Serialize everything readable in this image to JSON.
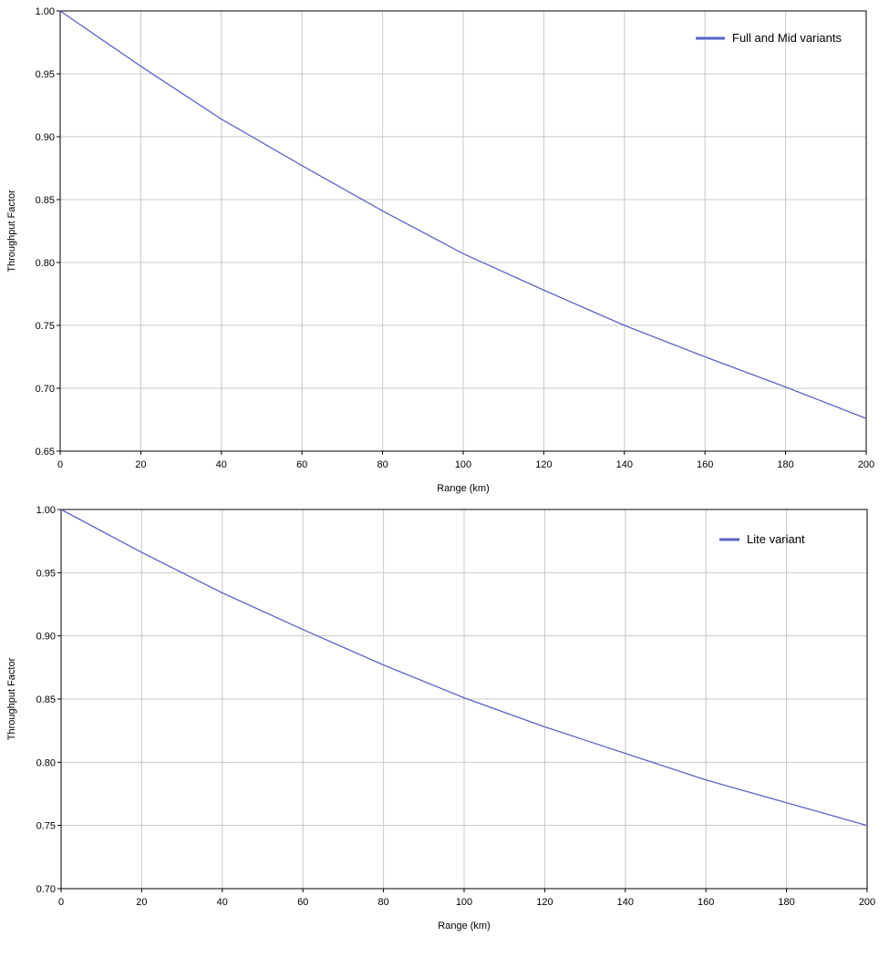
{
  "chart_data": [
    {
      "type": "line",
      "xlabel": "Range (km)",
      "ylabel": "Throughput Factor",
      "xlim": [
        0,
        200
      ],
      "ylim": [
        0.65,
        1.0
      ],
      "x_ticks": [
        0,
        20,
        40,
        60,
        80,
        100,
        120,
        140,
        160,
        180,
        200
      ],
      "y_ticks": [
        0.65,
        0.7,
        0.75,
        0.8,
        0.85,
        0.9,
        0.95,
        1.0
      ],
      "x_tick_labels": [
        "0",
        "20",
        "40",
        "60",
        "80",
        "100",
        "120",
        "140",
        "160",
        "180",
        "200"
      ],
      "y_tick_labels": [
        "0.65",
        "0.70",
        "0.75",
        "0.80",
        "0.85",
        "0.90",
        "0.95",
        "1.00"
      ],
      "grid": true,
      "legend_position": "top-right",
      "series": [
        {
          "name": "Full and Mid variants",
          "color": "#5b63c9",
          "x": [
            0,
            20,
            40,
            60,
            80,
            100,
            120,
            140,
            160,
            180,
            200
          ],
          "y": [
            1.0,
            0.956,
            0.914,
            0.877,
            0.841,
            0.807,
            0.778,
            0.75,
            0.725,
            0.701,
            0.676
          ]
        }
      ]
    },
    {
      "type": "line",
      "xlabel": "Range (km)",
      "ylabel": "Throughput Factor",
      "xlim": [
        0,
        200
      ],
      "ylim": [
        0.7,
        1.0
      ],
      "x_ticks": [
        0,
        20,
        40,
        60,
        80,
        100,
        120,
        140,
        160,
        180,
        200
      ],
      "y_ticks": [
        0.7,
        0.75,
        0.8,
        0.85,
        0.9,
        0.95,
        1.0
      ],
      "x_tick_labels": [
        "0",
        "20",
        "40",
        "60",
        "80",
        "100",
        "120",
        "140",
        "160",
        "180",
        "200"
      ],
      "y_tick_labels": [
        "0.70",
        "0.75",
        "0.80",
        "0.85",
        "0.90",
        "0.95",
        "1.00"
      ],
      "grid": true,
      "legend_position": "top-right",
      "series": [
        {
          "name": "Lite variant",
          "color": "#5b63c9",
          "x": [
            0,
            20,
            40,
            60,
            80,
            100,
            120,
            140,
            160,
            180,
            200
          ],
          "y": [
            1.0,
            0.966,
            0.934,
            0.905,
            0.877,
            0.851,
            0.828,
            0.807,
            0.786,
            0.768,
            0.75
          ]
        }
      ]
    }
  ]
}
